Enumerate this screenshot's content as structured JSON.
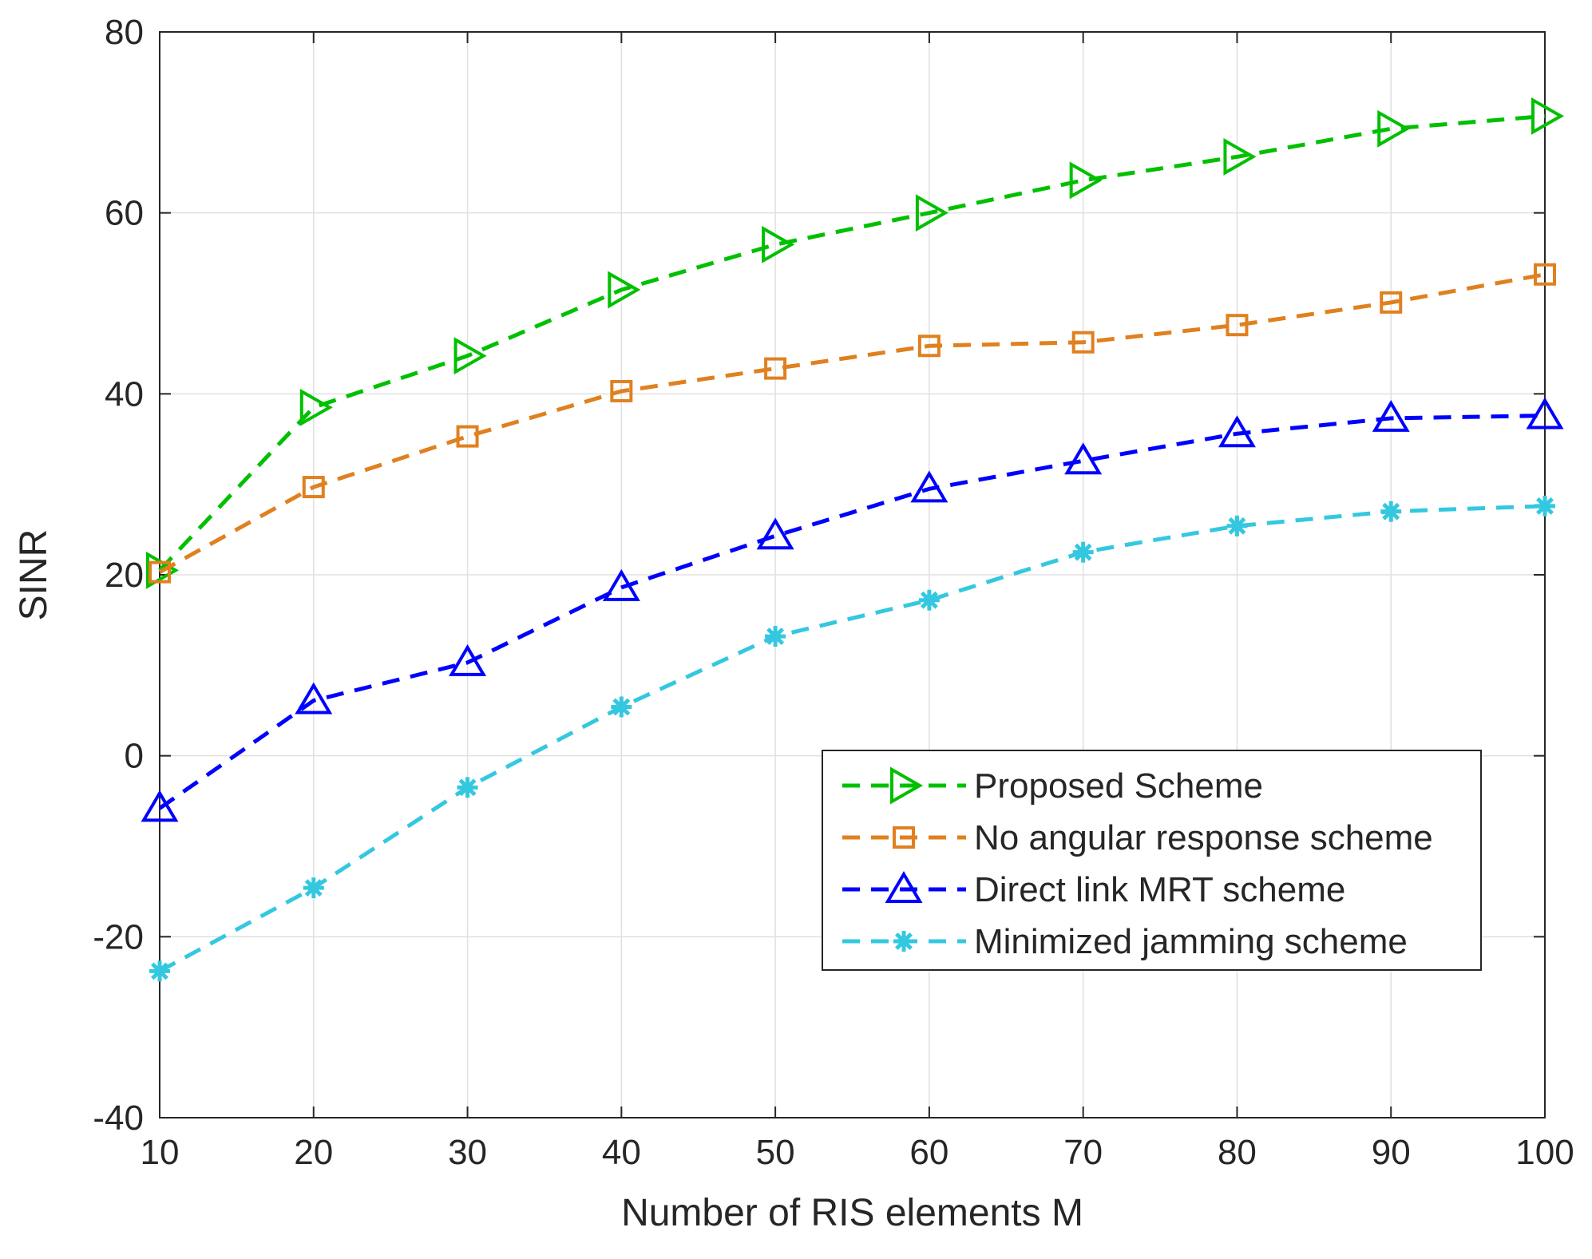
{
  "chart_data": {
    "type": "line",
    "title": "",
    "xlabel": "Number of RIS elements M",
    "ylabel": "SINR",
    "xlim": [
      10,
      100
    ],
    "ylim": [
      -40,
      80
    ],
    "xticks": [
      10,
      20,
      30,
      40,
      50,
      60,
      70,
      80,
      90,
      100
    ],
    "yticks": [
      -40,
      -20,
      0,
      20,
      40,
      60,
      80
    ],
    "grid": true,
    "legend_position": "lower-right",
    "x": [
      10,
      20,
      30,
      40,
      50,
      60,
      70,
      80,
      90,
      100
    ],
    "series": [
      {
        "name": "Proposed Scheme",
        "marker": "triangle-right",
        "color": "#00c000",
        "values": [
          20.5,
          38.5,
          44.2,
          51.5,
          56.5,
          60.0,
          63.6,
          66.2,
          69.3,
          70.7
        ]
      },
      {
        "name": "No angular response scheme",
        "marker": "square",
        "color": "#e0801f",
        "values": [
          20.3,
          29.7,
          35.3,
          40.3,
          42.8,
          45.3,
          45.7,
          47.6,
          50.1,
          53.2
        ]
      },
      {
        "name": "Direct link MRT scheme",
        "marker": "triangle-up",
        "color": "#0000ff",
        "values": [
          -5.8,
          6.1,
          10.3,
          18.6,
          24.3,
          29.5,
          32.6,
          35.6,
          37.3,
          37.6
        ]
      },
      {
        "name": "Minimized jamming scheme",
        "marker": "asterisk",
        "color": "#34c8e0",
        "values": [
          -23.8,
          -14.6,
          -3.5,
          5.4,
          13.2,
          17.2,
          22.5,
          25.4,
          27.0,
          27.6
        ]
      }
    ]
  }
}
